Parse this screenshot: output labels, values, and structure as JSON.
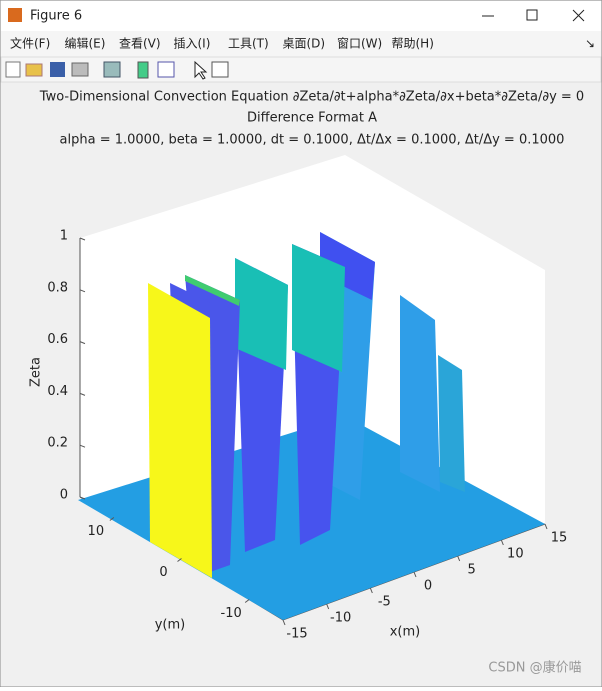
{
  "window": {
    "title": "Figure 6",
    "menu": [
      "文件(F)",
      "编辑(E)",
      "查看(V)",
      "插入(I)",
      "工具(T)",
      "桌面(D)",
      "窗口(W)",
      "帮助(H)"
    ]
  },
  "chart_data": {
    "type": "surface",
    "title": [
      "Two-Dimensional Convection Equation ∂Zeta/∂t+alpha*∂Zeta/∂x+beta*∂Zeta/∂y = 0",
      "Difference Format A",
      "alpha = 1.0000, beta = 1.0000, dt = 0.1000, Δt/Δx = 0.1000, Δt/Δy = 0.1000"
    ],
    "xlabel": "x(m)",
    "ylabel": "y(m)",
    "zlabel": "Zeta",
    "xlim": [
      -15,
      15
    ],
    "ylim": [
      -15,
      15
    ],
    "zlim": [
      0,
      1
    ],
    "xticks": [
      -15,
      -10,
      -5,
      0,
      5,
      10,
      15
    ],
    "yticks": [
      -10,
      0,
      10
    ],
    "zticks": [
      0,
      0.2,
      0.4,
      0.6,
      0.8,
      1
    ]
  },
  "watermark": "CSDN @康价喵"
}
